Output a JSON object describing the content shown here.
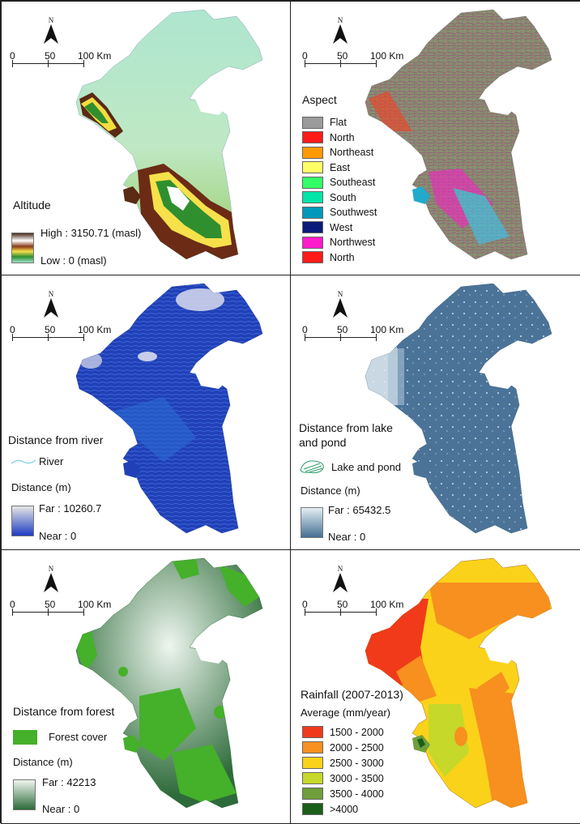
{
  "common": {
    "north_label": "N",
    "scale_labels": [
      "0",
      "50",
      "100 Km"
    ]
  },
  "panels": {
    "altitude": {
      "title": "Altitude",
      "high_label": "High : 3150.71 (masl)",
      "low_label": "Low : 0 (masl)",
      "ramp_colors": [
        "#4a2a1a",
        "#ffffff",
        "#8a3a1a",
        "#f6e14a",
        "#2f8f2f",
        "#9be0c8"
      ]
    },
    "aspect": {
      "title": "Aspect",
      "classes": [
        {
          "label": "Flat",
          "color": "#9b9b9b"
        },
        {
          "label": "North",
          "color": "#ff1a1a"
        },
        {
          "label": "Northeast",
          "color": "#ff9900"
        },
        {
          "label": "East",
          "color": "#ffff66"
        },
        {
          "label": "Southeast",
          "color": "#33ff66"
        },
        {
          "label": "South",
          "color": "#00e6a8"
        },
        {
          "label": "Southwest",
          "color": "#0099bb"
        },
        {
          "label": "West",
          "color": "#0b1a7a"
        },
        {
          "label": "Northwest",
          "color": "#ff1acc"
        },
        {
          "label": "North",
          "color": "#ff1a1a"
        }
      ]
    },
    "river": {
      "title": "Distance from river",
      "feature_label": "River",
      "distance_label": "Distance (m)",
      "far_label": "Far : 10260.7",
      "near_label": "Near : 0",
      "ramp_colors": [
        "#e6e6e6",
        "#1f3cc0"
      ]
    },
    "lake": {
      "title_line1": "Distance from lake",
      "title_line2": "and pond",
      "feature_label": "Lake and pond",
      "distance_label": "Distance (m)",
      "far_label": "Far : 65432.5",
      "near_label": "Near : 0",
      "ramp_colors": [
        "#e4eef3",
        "#456f93"
      ]
    },
    "forest": {
      "title": "Distance from forest",
      "feature_label": "Forest cover",
      "distance_label": "Distance (m)",
      "far_label": "Far : 42213",
      "near_label": "Near : 0",
      "ramp_colors": [
        "#eef6ef",
        "#2e6b3a"
      ],
      "feature_color": "#45b02a"
    },
    "rainfall": {
      "title": "Rainfall (2007-2013)",
      "subtitle": "Average (mm/year)",
      "classes": [
        {
          "label": "1500 - 2000",
          "color": "#f03a1a"
        },
        {
          "label": "2000 - 2500",
          "color": "#f7901e"
        },
        {
          "label": "2500 - 3000",
          "color": "#fbd21a"
        },
        {
          "label": "3000 - 3500",
          "color": "#c6d829"
        },
        {
          "label": "3500 - 4000",
          "color": "#6f9e3a"
        },
        {
          "label": ">4000",
          "color": "#1a5e1a"
        }
      ]
    }
  }
}
